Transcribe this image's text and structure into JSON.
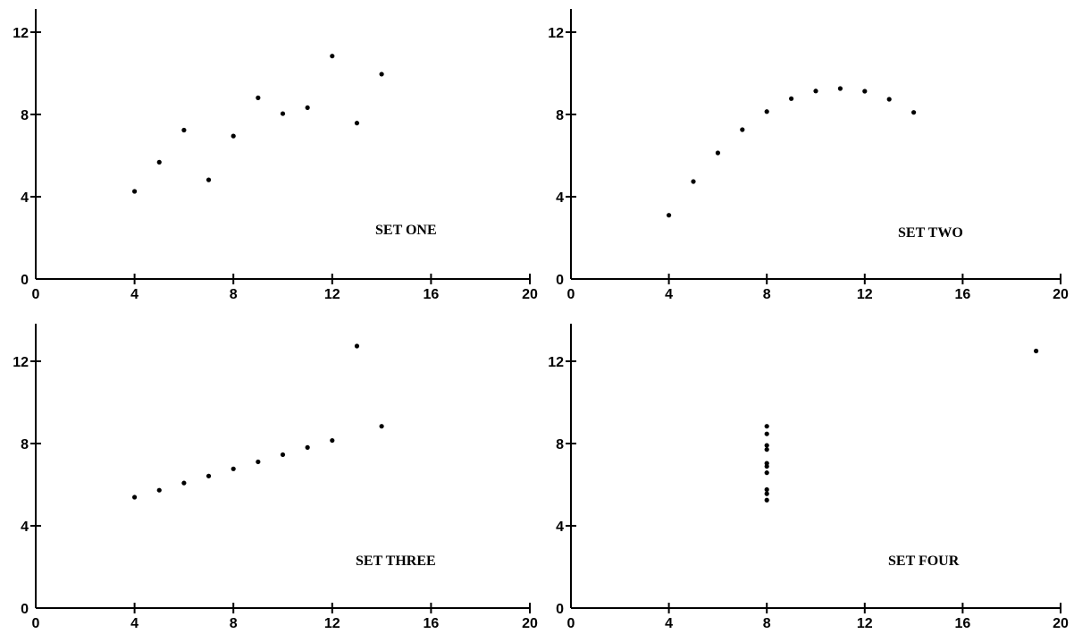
{
  "chart_data": [
    {
      "type": "scatter",
      "title": "SET ONE",
      "xlim": [
        0,
        20
      ],
      "ylim": [
        0,
        12
      ],
      "x_ticks": [
        "0",
        "4",
        "8",
        "12",
        "16",
        "20"
      ],
      "y_ticks": [
        "0",
        "4",
        "8",
        "12"
      ],
      "grid": false,
      "series": [
        {
          "points": [
            [
              4,
              4.26
            ],
            [
              5,
              5.68
            ],
            [
              6,
              7.24
            ],
            [
              7,
              4.82
            ],
            [
              8,
              6.95
            ],
            [
              9,
              8.81
            ],
            [
              10,
              8.04
            ],
            [
              11,
              8.33
            ],
            [
              12,
              10.84
            ],
            [
              13,
              7.58
            ],
            [
              14,
              9.96
            ]
          ]
        }
      ]
    },
    {
      "type": "scatter",
      "title": "SET TWO",
      "xlim": [
        0,
        20
      ],
      "ylim": [
        0,
        12
      ],
      "x_ticks": [
        "0",
        "4",
        "8",
        "12",
        "16",
        "20"
      ],
      "y_ticks": [
        "0",
        "4",
        "8",
        "12"
      ],
      "grid": false,
      "series": [
        {
          "points": [
            [
              4,
              3.1
            ],
            [
              5,
              4.74
            ],
            [
              6,
              6.13
            ],
            [
              7,
              7.26
            ],
            [
              8,
              8.14
            ],
            [
              9,
              8.77
            ],
            [
              10,
              9.14
            ],
            [
              11,
              9.26
            ],
            [
              12,
              9.13
            ],
            [
              13,
              8.74
            ],
            [
              14,
              8.1
            ]
          ]
        }
      ]
    },
    {
      "type": "scatter",
      "title": "SET THREE",
      "xlim": [
        0,
        20
      ],
      "ylim": [
        0,
        14
      ],
      "x_ticks": [
        "0",
        "4",
        "8",
        "12",
        "16",
        "20"
      ],
      "y_ticks": [
        "0",
        "4",
        "8",
        "12"
      ],
      "grid": false,
      "series": [
        {
          "points": [
            [
              4,
              5.39
            ],
            [
              5,
              5.73
            ],
            [
              6,
              6.08
            ],
            [
              7,
              6.42
            ],
            [
              8,
              6.77
            ],
            [
              9,
              7.11
            ],
            [
              10,
              7.46
            ],
            [
              11,
              7.81
            ],
            [
              12,
              8.15
            ],
            [
              13,
              12.74
            ],
            [
              14,
              8.84
            ]
          ]
        }
      ]
    },
    {
      "type": "scatter",
      "title": "SET FOUR",
      "xlim": [
        0,
        20
      ],
      "ylim": [
        0,
        14
      ],
      "x_ticks": [
        "0",
        "4",
        "8",
        "12",
        "16",
        "20"
      ],
      "y_ticks": [
        "0",
        "4",
        "8",
        "12"
      ],
      "grid": false,
      "series": [
        {
          "points": [
            [
              8,
              5.25
            ],
            [
              8,
              5.56
            ],
            [
              8,
              5.76
            ],
            [
              8,
              6.58
            ],
            [
              8,
              6.89
            ],
            [
              8,
              7.04
            ],
            [
              8,
              7.71
            ],
            [
              8,
              7.91
            ],
            [
              8,
              8.47
            ],
            [
              8,
              8.84
            ],
            [
              19,
              12.5
            ]
          ]
        }
      ]
    }
  ]
}
